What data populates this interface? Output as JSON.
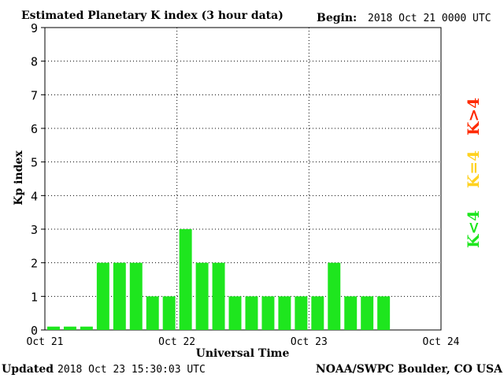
{
  "header": {
    "title": "Estimated Planetary K index (3 hour data)",
    "begin_label": "Begin:",
    "begin_value": "2018 Oct 21 0000 UTC"
  },
  "footer": {
    "updated_label": "Updated",
    "updated_value": "2018 Oct 23 15:30:03 UTC",
    "credit": "NOAA/SWPC Boulder, CO USA"
  },
  "legend": {
    "high": {
      "text": "K>4",
      "color": "#ff2a00"
    },
    "mid": {
      "text": "K=4",
      "color": "#ffd21f"
    },
    "low": {
      "text": "K<4",
      "color": "#1ee61e"
    }
  },
  "chart_data": {
    "type": "bar",
    "xlabel": "Universal Time",
    "ylabel": "Kp index",
    "ylim": [
      0,
      9
    ],
    "yticks": [
      "0",
      "1",
      "2",
      "3",
      "4",
      "5",
      "6",
      "7",
      "8",
      "9"
    ],
    "xticks": [
      "Oct 21",
      "Oct 22",
      "Oct 23",
      "Oct 24"
    ],
    "bar_color": "#1ee61e",
    "grid": "dotted",
    "values": [
      0.1,
      0.1,
      0.1,
      2,
      2,
      2,
      1,
      1,
      3,
      2,
      2,
      1,
      1,
      1,
      1,
      1,
      1,
      2,
      1,
      1,
      1
    ]
  }
}
